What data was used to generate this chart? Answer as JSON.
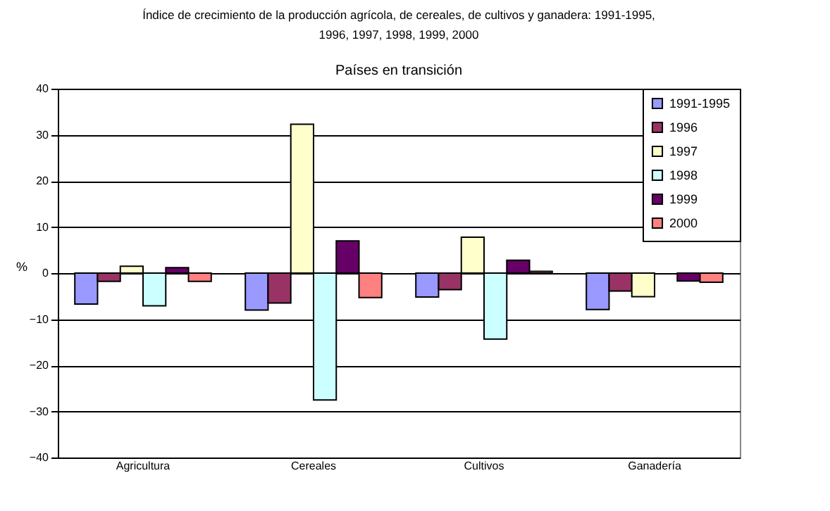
{
  "chart_data": {
    "type": "bar",
    "title": "Índice de crecimiento de la producción agrícola, de cereales, de cultivos y ganadera: 1991-1995, 1996, 1997, 1998, 1999, 2000",
    "subtitle": "Países en transición",
    "ylabel": "%",
    "categories": [
      "Agricultura",
      "Cereales",
      "Cultivos",
      "Ganadería"
    ],
    "series": [
      {
        "name": "1991-1995",
        "color": "#9999ff",
        "values": [
          -6.7,
          -8.0,
          -5.2,
          -7.9
        ]
      },
      {
        "name": "1996",
        "color": "#993366",
        "values": [
          -1.8,
          -6.5,
          -3.6,
          -3.9
        ]
      },
      {
        "name": "1997",
        "color": "#ffffcc",
        "values": [
          1.5,
          32.3,
          7.8,
          -5.1
        ]
      },
      {
        "name": "1998",
        "color": "#ccffff",
        "values": [
          -7.1,
          -27.5,
          -14.3,
          null
        ]
      },
      {
        "name": "1999",
        "color": "#660066",
        "values": [
          1.2,
          7.0,
          2.8,
          -1.7
        ]
      },
      {
        "name": "2000",
        "color": "#ff8080",
        "values": [
          -1.8,
          -5.3,
          0.4,
          -2.0
        ]
      }
    ],
    "ylim": [
      -40,
      40
    ],
    "yticks": [
      -40,
      -30,
      -20,
      -10,
      0,
      10,
      20,
      30,
      40
    ],
    "grid": "y",
    "legend": "top right"
  }
}
